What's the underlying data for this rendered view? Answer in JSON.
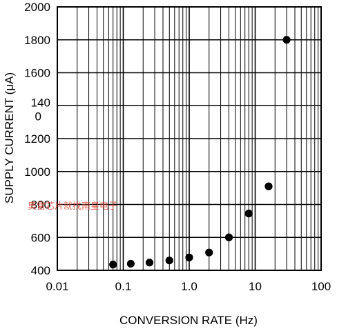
{
  "chart_data": {
    "type": "scatter",
    "title": "",
    "xlabel": "CONVERSION RATE (Hz)",
    "ylabel": "SUPPLY CURRENT (μA)",
    "xscale": "log",
    "xlim": [
      0.01,
      100
    ],
    "ylim": [
      400,
      2000
    ],
    "grid": true,
    "x_tick_labels": [
      "0.01",
      "0.1",
      "1.0",
      "10",
      "100"
    ],
    "x_tick_values": [
      0.01,
      0.1,
      1,
      10,
      100
    ],
    "y_tick_labels": [
      "400",
      "600",
      "800",
      "1000",
      "1200",
      "140\n0",
      "1600",
      "1800",
      "2000"
    ],
    "y_tick_values": [
      400,
      600,
      800,
      1000,
      1200,
      1400,
      1600,
      1800,
      2000
    ],
    "series": [
      {
        "color": "#000000",
        "x": [
          0.07,
          0.13,
          0.25,
          0.5,
          1.0,
          2.0,
          4.0,
          8.0,
          16,
          30
        ],
        "y": [
          435,
          440,
          447,
          460,
          478,
          508,
          600,
          745,
          910,
          1800
        ]
      }
    ],
    "watermark": "奥雷芯片就找南皇电子"
  }
}
